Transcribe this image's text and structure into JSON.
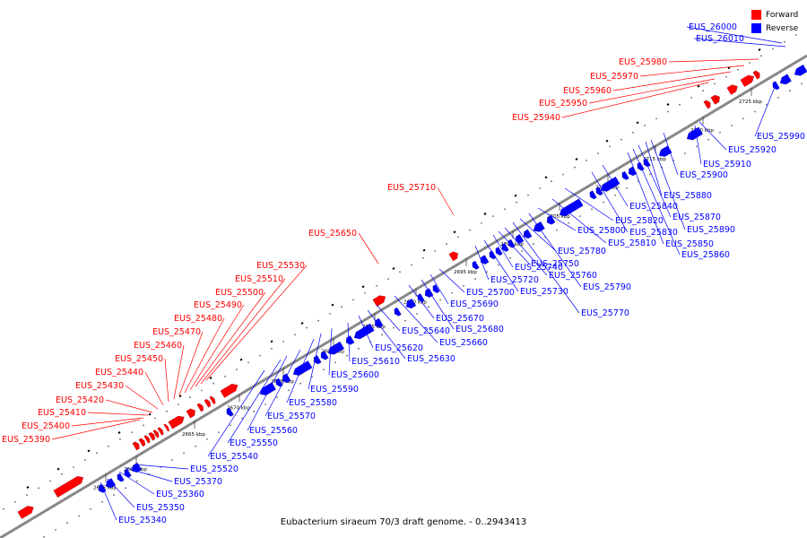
{
  "caption": "Eubacterium siraeum 70/3 draft genome. - 0..2943413",
  "legend": [
    {
      "label": "Forward",
      "color": "#ff0000"
    },
    {
      "label": "Reverse",
      "color": "#0000ff"
    }
  ],
  "colors": {
    "forward": "#ff0000",
    "reverse": "#0000ff",
    "axis": "#888888"
  },
  "ticks": [
    "2655 kbp",
    "2660 kbp",
    "2665 kbp",
    "2670 kbp",
    "2675 kbp",
    "2680 kbp",
    "2685 kbp",
    "2690 kbp",
    "2695 kbp",
    "2700 kbp",
    "2705 kbp",
    "2710 kbp",
    "2715 kbp",
    "2720 kbp",
    "2725 kbp"
  ],
  "forward_labels": [
    "EUS_25390",
    "EUS_25400",
    "EUS_25410",
    "EUS_25420",
    "EUS_25430",
    "EUS_25440",
    "EUS_25450",
    "EUS_25460",
    "EUS_25470",
    "EUS_25480",
    "EUS_25490",
    "EUS_25500",
    "EUS_25510",
    "EUS_25530",
    "EUS_25650",
    "EUS_25710",
    "EUS_25940",
    "EUS_25950",
    "EUS_25960",
    "EUS_25970",
    "EUS_25980"
  ],
  "reverse_labels": [
    "EUS_25340",
    "EUS_25350",
    "EUS_25360",
    "EUS_25370",
    "EUS_25520",
    "EUS_25540",
    "EUS_25550",
    "EUS_25560",
    "EUS_25570",
    "EUS_25580",
    "EUS_25590",
    "EUS_25600",
    "EUS_25610",
    "EUS_25620",
    "EUS_25630",
    "EUS_25640",
    "EUS_25660",
    "EUS_25670",
    "EUS_25680",
    "EUS_25690",
    "EUS_25700",
    "EUS_25720",
    "EUS_25730",
    "EUS_25740",
    "EUS_25750",
    "EUS_25760",
    "EUS_25770",
    "EUS_25780",
    "EUS_25790",
    "EUS_25800",
    "EUS_25810",
    "EUS_25820",
    "EUS_25830",
    "EUS_25840",
    "EUS_25850",
    "EUS_25860",
    "EUS_25870",
    "EUS_25880",
    "EUS_25890",
    "EUS_25900",
    "EUS_25910",
    "EUS_25920",
    "EUS_25990",
    "EUS_26000",
    "EUS_26010"
  ]
}
